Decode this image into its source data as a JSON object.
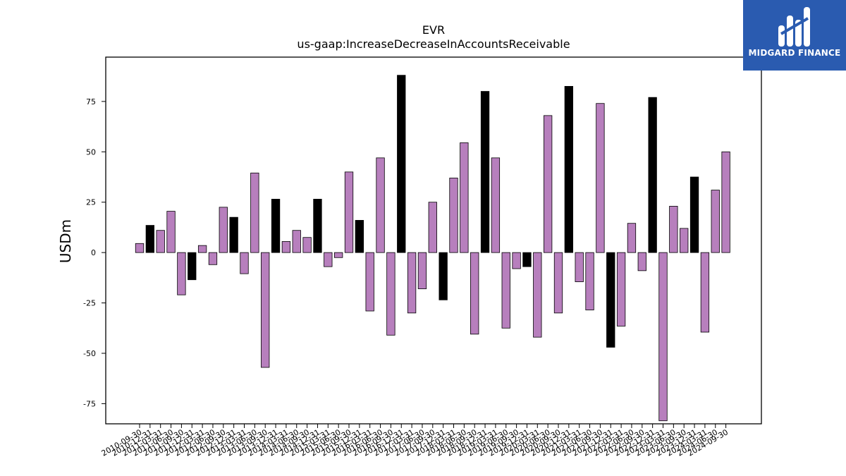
{
  "chart_data": {
    "type": "bar",
    "title": "EVR",
    "subtitle": "us-gaap:IncreaseDecreaseInAccountsReceivable",
    "xlabel": "",
    "ylabel": "USDm",
    "ylim": [
      -85,
      97
    ],
    "yticks": [
      -75,
      -50,
      -25,
      0,
      25,
      50,
      75
    ],
    "grid": false,
    "colors": {
      "default": "#b77fbd",
      "q4": "#000000",
      "edge": "#000000"
    },
    "categories": [
      "2010-09-30",
      "2010-12-31",
      "2011-03-31",
      "2011-06-30",
      "2011-09-30",
      "2011-12-31",
      "2012-03-31",
      "2012-06-30",
      "2012-09-30",
      "2012-12-31",
      "2013-03-31",
      "2013-06-30",
      "2013-09-30",
      "2013-12-31",
      "2014-03-31",
      "2014-06-30",
      "2014-09-30",
      "2014-12-31",
      "2015-03-31",
      "2015-06-30",
      "2015-09-30",
      "2015-12-31",
      "2016-03-31",
      "2016-06-30",
      "2016-09-30",
      "2016-12-31",
      "2017-03-31",
      "2017-06-30",
      "2017-09-30",
      "2017-12-31",
      "2018-03-31",
      "2018-06-30",
      "2018-09-30",
      "2018-12-31",
      "2019-03-31",
      "2019-06-30",
      "2019-09-30",
      "2019-12-31",
      "2020-03-31",
      "2020-06-30",
      "2020-09-30",
      "2020-12-31",
      "2021-03-31",
      "2021-06-30",
      "2021-09-30",
      "2021-12-31",
      "2022-03-31",
      "2022-06-30",
      "2022-09-30",
      "2022-12-31",
      "2023-03-31",
      "2023-06-30",
      "2023-09-30",
      "2023-12-31",
      "2024-03-31",
      "2024-06-30",
      "2024-09-30"
    ],
    "values": [
      4.5,
      13.5,
      11,
      20.5,
      -21,
      -13.5,
      3.5,
      -6,
      22.5,
      17.5,
      -10.5,
      39.5,
      -57,
      26.5,
      5.5,
      11,
      7.5,
      26.5,
      -7,
      -2.5,
      40,
      16,
      -29,
      47,
      -41,
      88,
      -30,
      -18,
      25,
      -23.5,
      37,
      54.5,
      -40.5,
      80,
      47,
      -37.5,
      -8,
      -7,
      -42,
      68,
      -30,
      82.5,
      -14.5,
      -28.5,
      74,
      -47,
      -36.5,
      14.5,
      -9,
      77,
      -83.5,
      23,
      12,
      37.5,
      -39.5,
      31,
      50
    ]
  },
  "logo": {
    "text": "MIDGARD FINANCE"
  }
}
